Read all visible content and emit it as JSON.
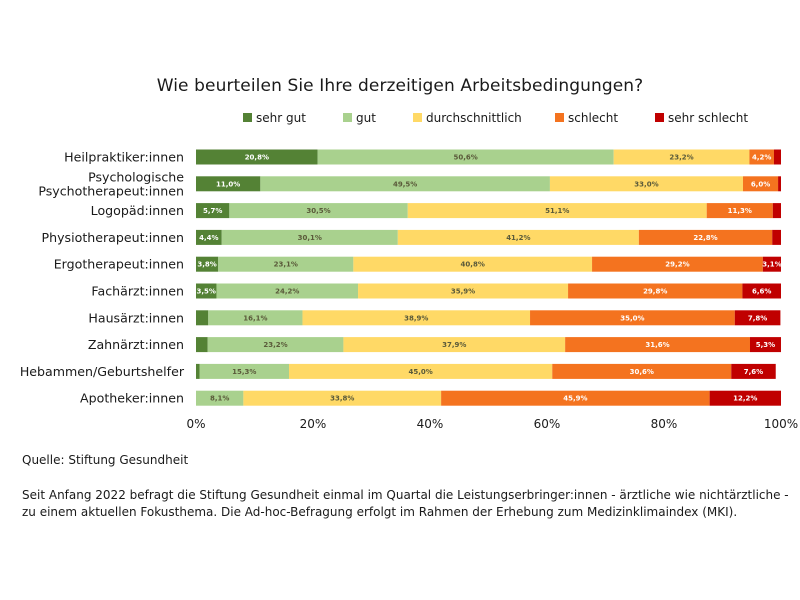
{
  "chart_data": {
    "type": "bar",
    "orientation": "horizontal",
    "stacked": true,
    "title": "Wie beurteilen Sie Ihre derzeitigen Arbeitsbedingungen?",
    "legend_position": "top",
    "xlim": [
      0,
      100
    ],
    "xticks": [
      "0%",
      "20%",
      "40%",
      "60%",
      "80%",
      "100%"
    ],
    "grid": false,
    "categories": [
      "Heilpraktiker:innen",
      "Psychologische\nPsychotherapeut:innen",
      "Logopäd:innen",
      "Physiotherapeut:innen",
      "Ergotherapeut:innen",
      "Fachärzt:innen",
      "Hausärzt:innen",
      "Zahnärzt:innen",
      "Hebammen/Geburtshelfer",
      "Apotheker:innen"
    ],
    "series": [
      {
        "name": "sehr gut",
        "color": "#548235",
        "values": [
          20.8,
          11.0,
          5.7,
          4.4,
          3.8,
          3.5,
          2.1,
          2.0,
          0.6,
          0.0
        ],
        "labels": [
          "20,8%",
          "11,0%",
          "5,7%",
          "4,4%",
          "3,8%",
          "3,5%",
          "",
          "",
          "",
          ""
        ]
      },
      {
        "name": "gut",
        "color": "#a9d18e",
        "values": [
          50.6,
          49.5,
          30.5,
          30.1,
          23.1,
          24.2,
          16.1,
          23.2,
          15.3,
          8.1
        ],
        "labels": [
          "50,6%",
          "49,5%",
          "30,5%",
          "30,1%",
          "23,1%",
          "24,2%",
          "16,1%",
          "23,2%",
          "15,3%",
          "8,1%"
        ]
      },
      {
        "name": "durchschnittlich",
        "color": "#ffd966",
        "values": [
          23.2,
          33.0,
          51.1,
          41.2,
          40.8,
          35.9,
          38.9,
          37.9,
          45.0,
          33.8
        ],
        "labels": [
          "23,2%",
          "33,0%",
          "51,1%",
          "41,2%",
          "40,8%",
          "35,9%",
          "38,9%",
          "37,9%",
          "45,0%",
          "33,8%"
        ]
      },
      {
        "name": "schlecht",
        "color": "#f4731f",
        "values": [
          4.2,
          6.0,
          11.3,
          22.8,
          29.2,
          29.8,
          35.0,
          31.6,
          30.6,
          45.9
        ],
        "labels": [
          "4,2%",
          "6,0%",
          "11,3%",
          "22,8%",
          "29,2%",
          "29,8%",
          "35,0%",
          "31,6%",
          "30,6%",
          "45,9%"
        ]
      },
      {
        "name": "sehr schlecht",
        "color": "#c00000",
        "values": [
          1.2,
          0.5,
          1.4,
          1.5,
          3.1,
          6.6,
          7.8,
          5.3,
          7.6,
          12.2
        ],
        "labels": [
          "",
          "",
          "",
          "",
          "3,1%",
          "6,6%",
          "7,8%",
          "5,3%",
          "7,6%",
          "12,2%"
        ]
      }
    ]
  },
  "footer": {
    "source": "Quelle: Stiftung Gesundheit",
    "note": "Seit Anfang 2022 befragt die Stiftung Gesundheit einmal im Quartal die Leistungserbringer:innen - ärztliche wie nichtärztliche - zu einem aktuellen Fokusthema. Die Ad-hoc-Befragung erfolgt im Rahmen der Erhebung zum Medizinklimaindex (MKI)."
  }
}
